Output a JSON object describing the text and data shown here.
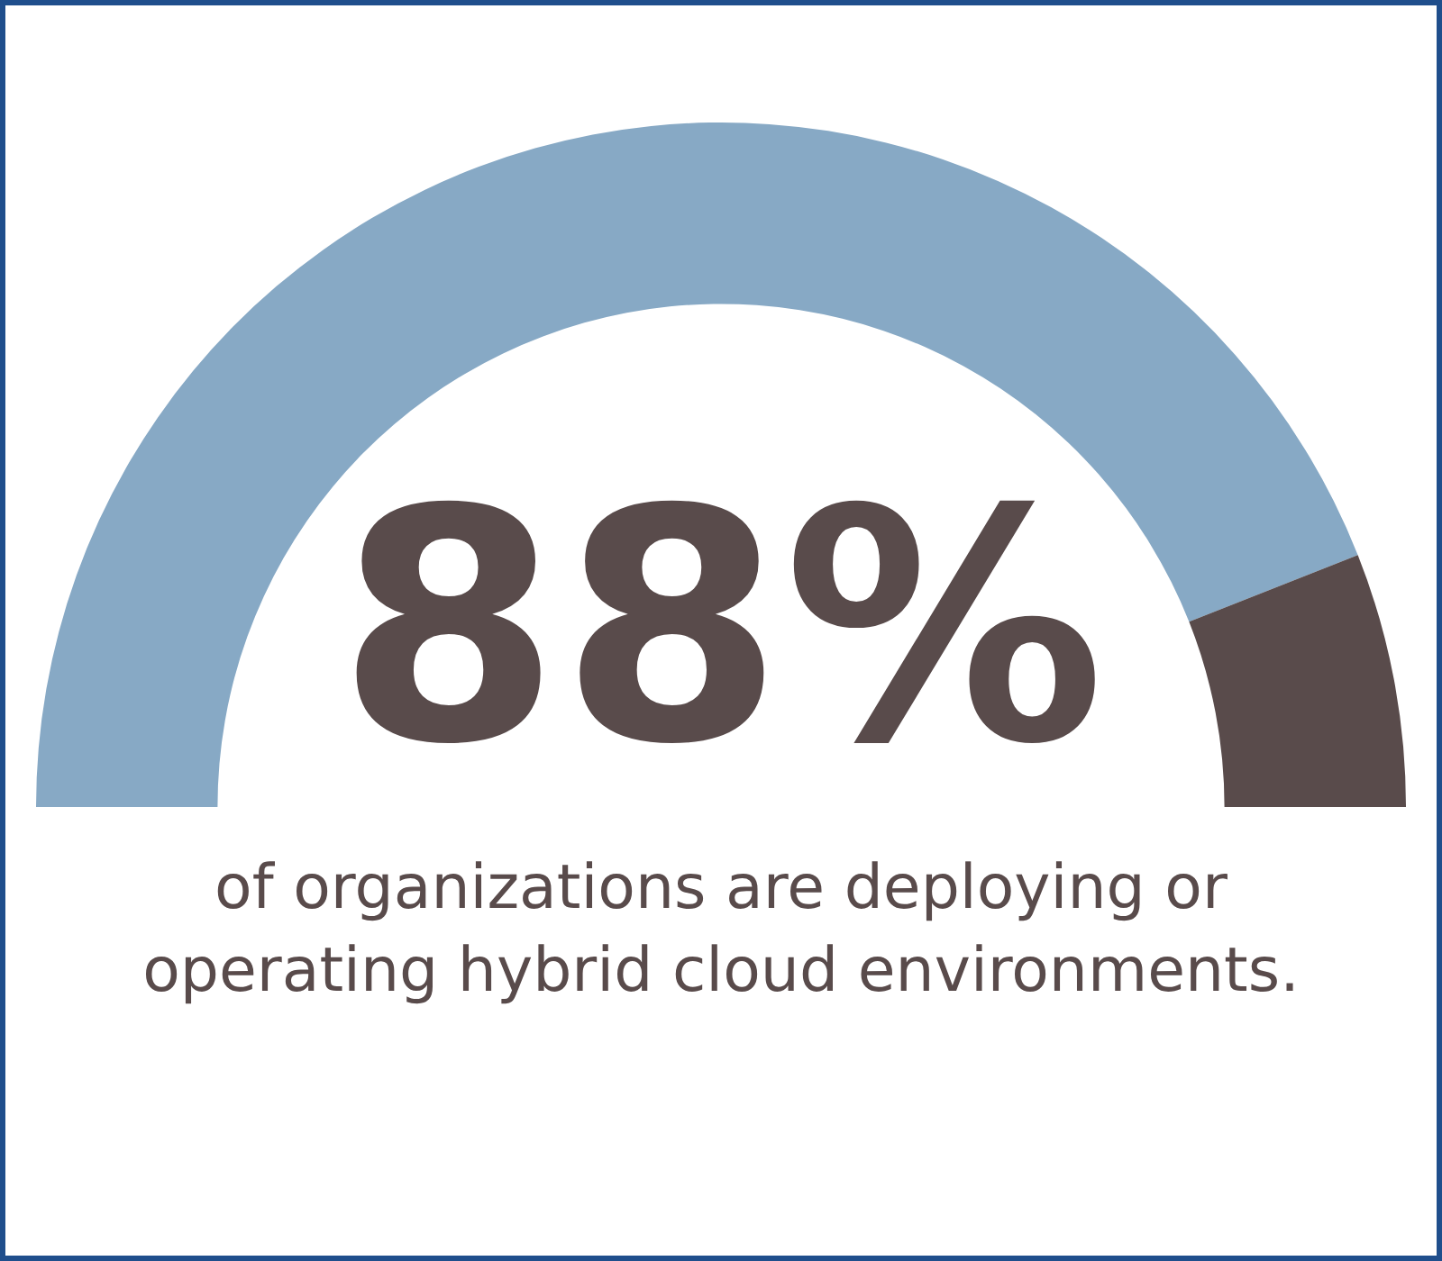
{
  "chart_data": {
    "type": "donut",
    "subtitle": "of organizations are deploying or operating hybrid cloud environments.",
    "categories": [
      null,
      null
    ],
    "values": [
      88,
      12
    ],
    "colors": [
      "#87a9c5",
      "#594b4b"
    ],
    "value_labels": [
      "88%",
      null
    ]
  }
}
